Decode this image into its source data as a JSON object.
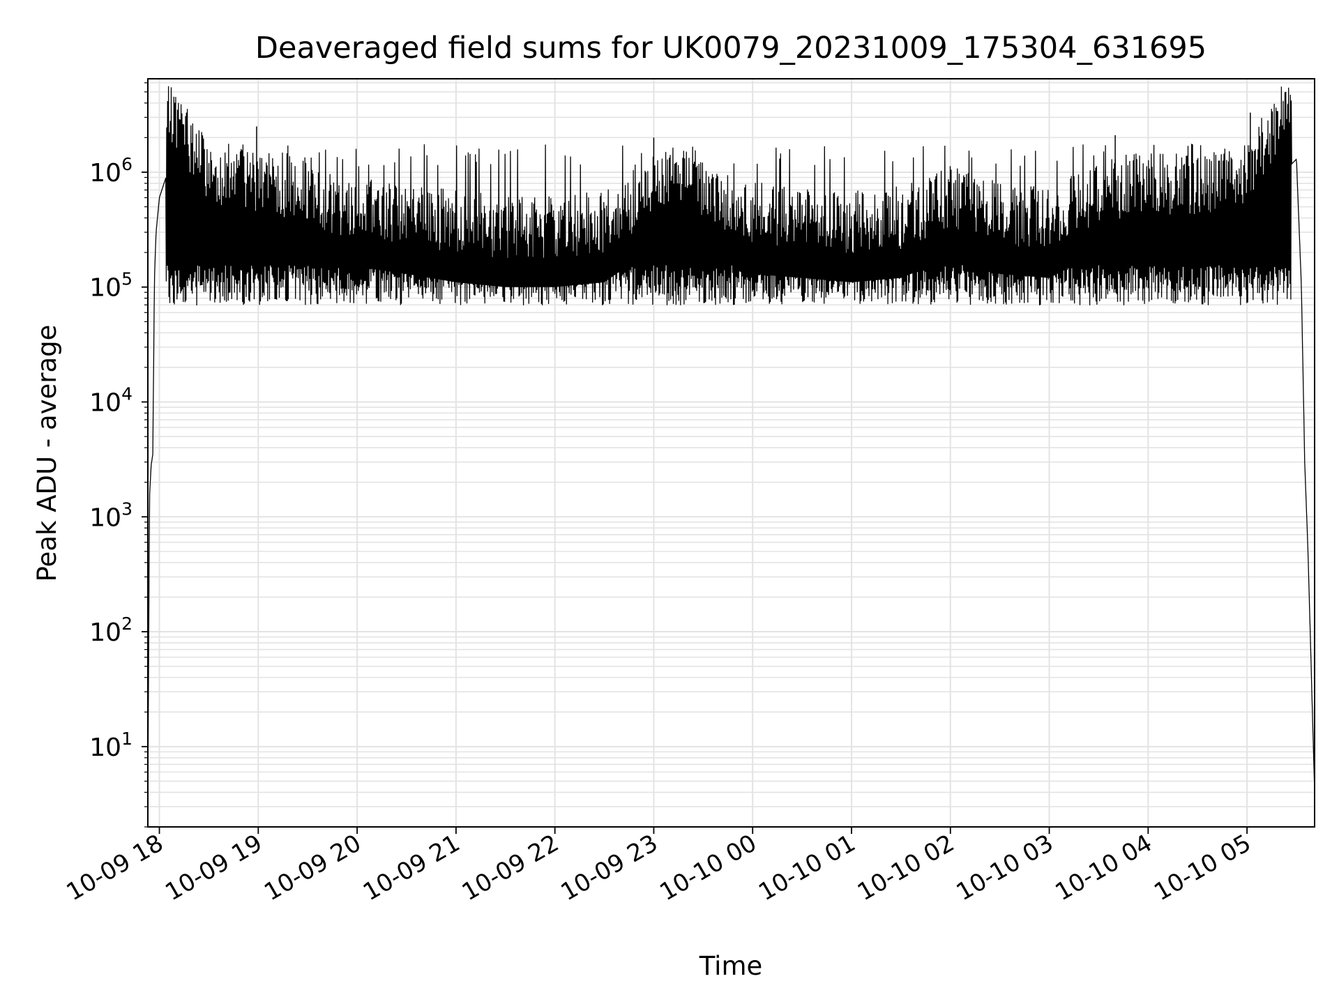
{
  "chart_data": {
    "type": "line",
    "title": "Deaveraged field sums for UK0079_20231009_175304_631695",
    "xlabel": "Time",
    "ylabel": "Peak ADU - average",
    "x_scale": "time",
    "y_scale": "log",
    "xlim": [
      "2023-10-09 17:53",
      "2023-10-10 05:41"
    ],
    "ylim": [
      2,
      6500000
    ],
    "x_ticks": [
      {
        "t": "2023-10-09 18:00",
        "label": "10-09 18"
      },
      {
        "t": "2023-10-09 19:00",
        "label": "10-09 19"
      },
      {
        "t": "2023-10-09 20:00",
        "label": "10-09 20"
      },
      {
        "t": "2023-10-09 21:00",
        "label": "10-09 21"
      },
      {
        "t": "2023-10-09 22:00",
        "label": "10-09 22"
      },
      {
        "t": "2023-10-09 23:00",
        "label": "10-09 23"
      },
      {
        "t": "2023-10-10 00:00",
        "label": "10-10 00"
      },
      {
        "t": "2023-10-10 01:00",
        "label": "10-10 01"
      },
      {
        "t": "2023-10-10 02:00",
        "label": "10-10 02"
      },
      {
        "t": "2023-10-10 03:00",
        "label": "10-10 03"
      },
      {
        "t": "2023-10-10 04:00",
        "label": "10-10 04"
      },
      {
        "t": "2023-10-10 05:00",
        "label": "10-10 05"
      }
    ],
    "y_ticks": [
      {
        "value": 10,
        "base": "10",
        "exp": "1"
      },
      {
        "value": 100,
        "base": "10",
        "exp": "2"
      },
      {
        "value": 1000,
        "base": "10",
        "exp": "3"
      },
      {
        "value": 10000,
        "base": "10",
        "exp": "4"
      },
      {
        "value": 100000,
        "base": "10",
        "exp": "5"
      },
      {
        "value": 1000000,
        "base": "10",
        "exp": "6"
      }
    ],
    "grid": "major and minor",
    "legend": "none",
    "series": [
      {
        "color": "#000000",
        "points": [
          [
            "2023-10-09 17:53",
            3
          ],
          [
            "2023-10-09 17:54",
            1500
          ],
          [
            "2023-10-09 17:55",
            2800
          ],
          [
            "2023-10-09 17:56",
            3500
          ],
          [
            "2023-10-09 17:57",
            120000
          ],
          [
            "2023-10-09 17:58",
            300000
          ],
          [
            "2023-10-09 18:00",
            600000
          ],
          [
            "2023-10-09 18:05",
            1000000
          ],
          [
            "2023-10-09 18:10",
            900000
          ],
          [
            "2023-10-09 18:30",
            300000
          ],
          [
            "2023-10-09 19:00",
            250000
          ],
          [
            "2023-10-09 19:30",
            180000
          ],
          [
            "2023-10-09 20:00",
            150000
          ],
          [
            "2023-10-09 20:30",
            130000
          ],
          [
            "2023-10-09 21:00",
            110000
          ],
          [
            "2023-10-09 21:30",
            100000
          ],
          [
            "2023-10-09 22:00",
            100000
          ],
          [
            "2023-10-09 22:30",
            110000
          ],
          [
            "2023-10-09 23:00",
            220000
          ],
          [
            "2023-10-09 23:20",
            300000
          ],
          [
            "2023-10-09 23:40",
            180000
          ],
          [
            "2023-10-10 00:00",
            130000
          ],
          [
            "2023-10-10 00:30",
            120000
          ],
          [
            "2023-10-10 01:00",
            110000
          ],
          [
            "2023-10-10 01:30",
            120000
          ],
          [
            "2023-10-10 02:00",
            180000
          ],
          [
            "2023-10-10 02:30",
            130000
          ],
          [
            "2023-10-10 03:00",
            120000
          ],
          [
            "2023-10-10 03:30",
            200000
          ],
          [
            "2023-10-10 04:00",
            250000
          ],
          [
            "2023-10-10 04:30",
            220000
          ],
          [
            "2023-10-10 05:00",
            300000
          ],
          [
            "2023-10-10 05:25",
            1100000
          ],
          [
            "2023-10-10 05:30",
            1300000
          ],
          [
            "2023-10-10 05:33",
            100000
          ],
          [
            "2023-10-10 05:35",
            3000
          ],
          [
            "2023-10-10 05:37",
            500
          ],
          [
            "2023-10-10 05:41",
            4
          ]
        ],
        "noise": {
          "typical_floor": 55000,
          "spike_peaks": [
            [
              "2023-10-09 18:59",
              2500000
            ],
            [
              "2023-10-09 23:00",
              2000000
            ],
            [
              "2023-10-10 03:40",
              2100000
            ],
            [
              "2023-10-10 05:02",
              3300000
            ]
          ]
        }
      }
    ]
  }
}
